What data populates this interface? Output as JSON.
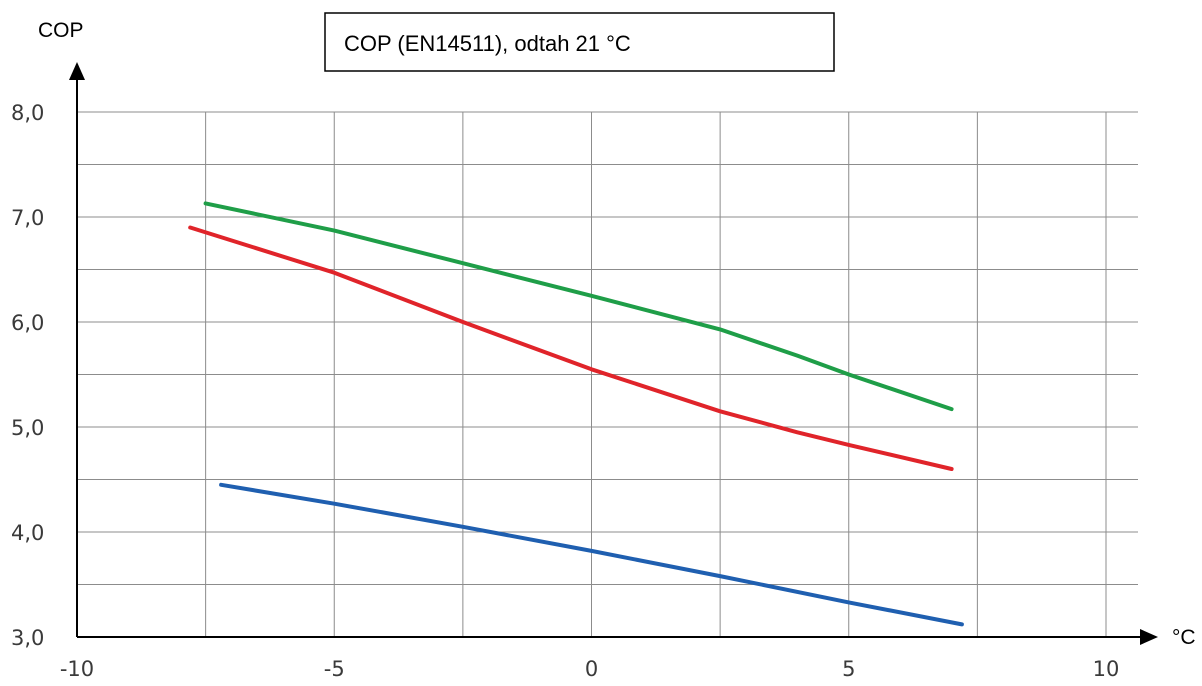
{
  "chart_data": {
    "type": "line",
    "title": "COP (EN14511), odtah 21 °C",
    "xlabel": "°C",
    "ylabel": "COP",
    "xlim": [
      -10,
      10
    ],
    "ylim": [
      3.0,
      8.0
    ],
    "x_ticks": [
      -10,
      -5,
      0,
      5,
      10
    ],
    "x_tick_labels": [
      "-10",
      "-5",
      "0",
      "5",
      "10"
    ],
    "y_ticks": [
      3,
      4,
      5,
      6,
      7,
      8
    ],
    "y_tick_labels": [
      "3,0",
      "4,0",
      "5,0",
      "6,0",
      "7,0",
      "8,0"
    ],
    "grid": true,
    "legend": "none",
    "series": [
      {
        "color": "#1f9e48",
        "points": [
          [
            -7.5,
            7.13
          ],
          [
            -5,
            6.87
          ],
          [
            -2.5,
            6.56
          ],
          [
            0,
            6.25
          ],
          [
            2.5,
            5.93
          ],
          [
            4,
            5.68
          ],
          [
            5,
            5.5
          ],
          [
            7,
            5.17
          ]
        ]
      },
      {
        "color": "#e0242a",
        "points": [
          [
            -7.8,
            6.9
          ],
          [
            -5,
            6.47
          ],
          [
            -2.5,
            6.0
          ],
          [
            0,
            5.55
          ],
          [
            2.5,
            5.15
          ],
          [
            4,
            4.95
          ],
          [
            5,
            4.83
          ],
          [
            7,
            4.6
          ]
        ]
      },
      {
        "color": "#1f5fb0",
        "points": [
          [
            -7.2,
            4.45
          ],
          [
            -5,
            4.27
          ],
          [
            -2.5,
            4.05
          ],
          [
            0,
            3.82
          ],
          [
            2.5,
            3.58
          ],
          [
            5,
            3.33
          ],
          [
            7.2,
            3.12
          ]
        ]
      }
    ]
  }
}
